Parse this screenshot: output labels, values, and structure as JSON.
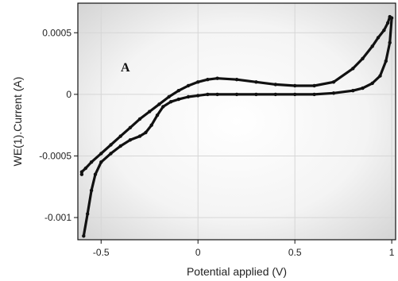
{
  "chart_data": {
    "type": "line",
    "title": "",
    "panel_label": "A",
    "xlabel": "Potential applied (V)",
    "ylabel": "WE(1).Current (A)",
    "xlim": [
      -0.62,
      1.02
    ],
    "ylim": [
      -0.00118,
      0.00074
    ],
    "xticks": [
      -0.5,
      0,
      0.5,
      1
    ],
    "xtick_labels": [
      "-0.5",
      "0",
      "0.5",
      "1"
    ],
    "yticks": [
      0.0005,
      0,
      -0.0005,
      -0.001
    ],
    "ytick_labels": [
      "0.0005",
      "0",
      "-0.0005",
      "-0.001"
    ],
    "grid": true,
    "background": "radial-gradient",
    "series": [
      {
        "color": "#111111",
        "marker": "dot",
        "x": [
          -0.59,
          -0.57,
          -0.55,
          -0.53,
          -0.5,
          -0.45,
          -0.4,
          -0.35,
          -0.3,
          -0.27,
          -0.24,
          -0.21,
          -0.18,
          -0.14,
          -0.1,
          -0.05,
          0,
          0.05,
          0.1,
          0.2,
          0.3,
          0.4,
          0.5,
          0.6,
          0.7,
          0.8,
          0.85,
          0.9,
          0.94,
          0.97,
          0.99,
          1.0,
          0.99,
          0.98,
          0.96,
          0.93,
          0.9,
          0.85,
          0.8,
          0.7,
          0.6,
          0.5,
          0.4,
          0.3,
          0.2,
          0.1,
          0.05,
          0.0,
          -0.05,
          -0.1,
          -0.15,
          -0.2,
          -0.25,
          -0.3,
          -0.35,
          -0.4,
          -0.45,
          -0.5,
          -0.55,
          -0.58,
          -0.6,
          -0.6
        ],
        "y": [
          -0.00115,
          -0.00097,
          -0.00078,
          -0.00065,
          -0.00055,
          -0.00048,
          -0.00042,
          -0.00037,
          -0.00034,
          -0.00031,
          -0.00025,
          -0.00017,
          -0.0001,
          -6e-05,
          -4e-05,
          -2e-05,
          -1e-05,
          0.0,
          0.0,
          0.0,
          0.0,
          0.0,
          0.0,
          0.0,
          1e-05,
          3e-05,
          5e-05,
          9e-05,
          0.00015,
          0.00027,
          0.00042,
          0.00062,
          0.00063,
          0.00058,
          0.00052,
          0.00046,
          0.00039,
          0.00029,
          0.00021,
          0.0001,
          7e-05,
          7e-05,
          8e-05,
          0.0001,
          0.00012,
          0.00013,
          0.00012,
          0.0001,
          7e-05,
          3e-05,
          -2e-05,
          -8e-05,
          -0.00014,
          -0.0002,
          -0.00027,
          -0.00034,
          -0.00041,
          -0.00048,
          -0.00055,
          -0.0006,
          -0.00063,
          -0.00065
        ]
      }
    ]
  }
}
